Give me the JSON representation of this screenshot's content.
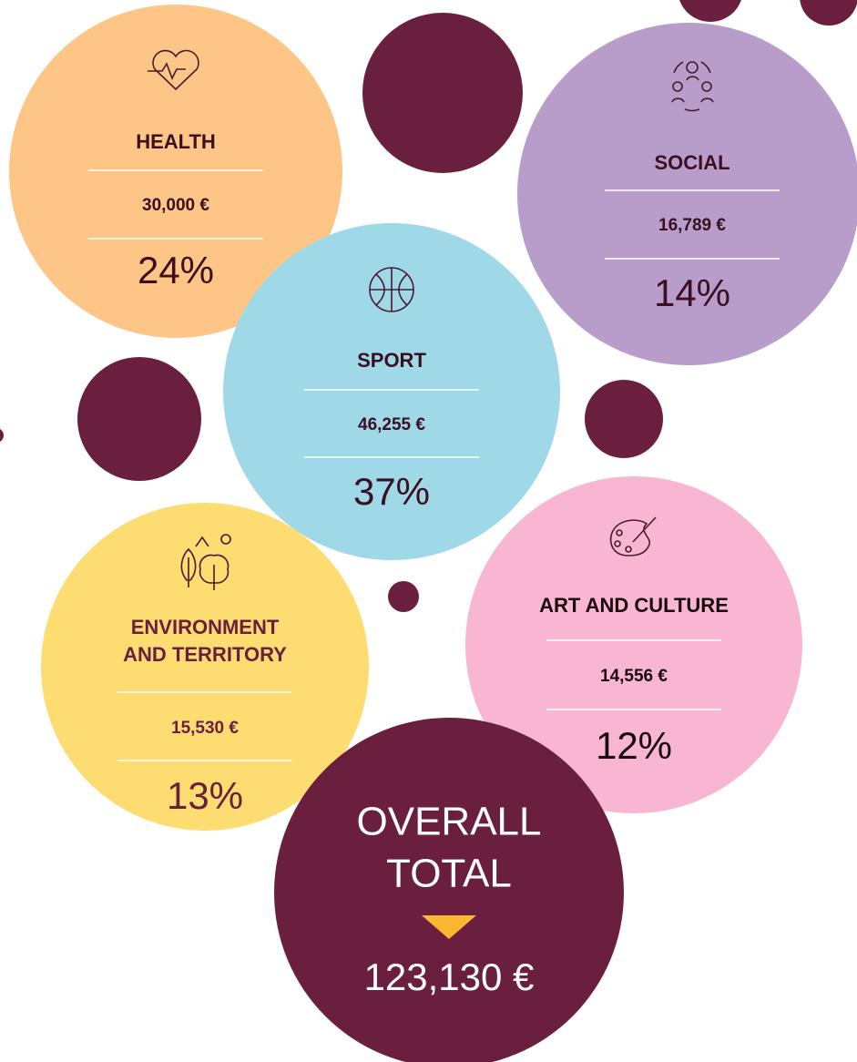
{
  "items": [
    {
      "name": [
        "HEALTH"
      ],
      "amount": "30,000 €",
      "share": "24%"
    },
    {
      "name": [
        "SOCIAL"
      ],
      "amount": "16,789 €",
      "share": "14%"
    },
    {
      "name": [
        "SPORT"
      ],
      "amount": "46,255 €",
      "share": "37%"
    },
    {
      "name": [
        "ENVIRONMENT",
        "AND TERRITORY"
      ],
      "amount": "15,530 €",
      "share": "13%"
    },
    {
      "name": [
        "ART AND CULTURE"
      ],
      "amount": "14,556 €",
      "share": "12%"
    }
  ],
  "total": {
    "label": [
      "OVERALL",
      "TOTAL"
    ],
    "amount": "123,130 €"
  }
}
